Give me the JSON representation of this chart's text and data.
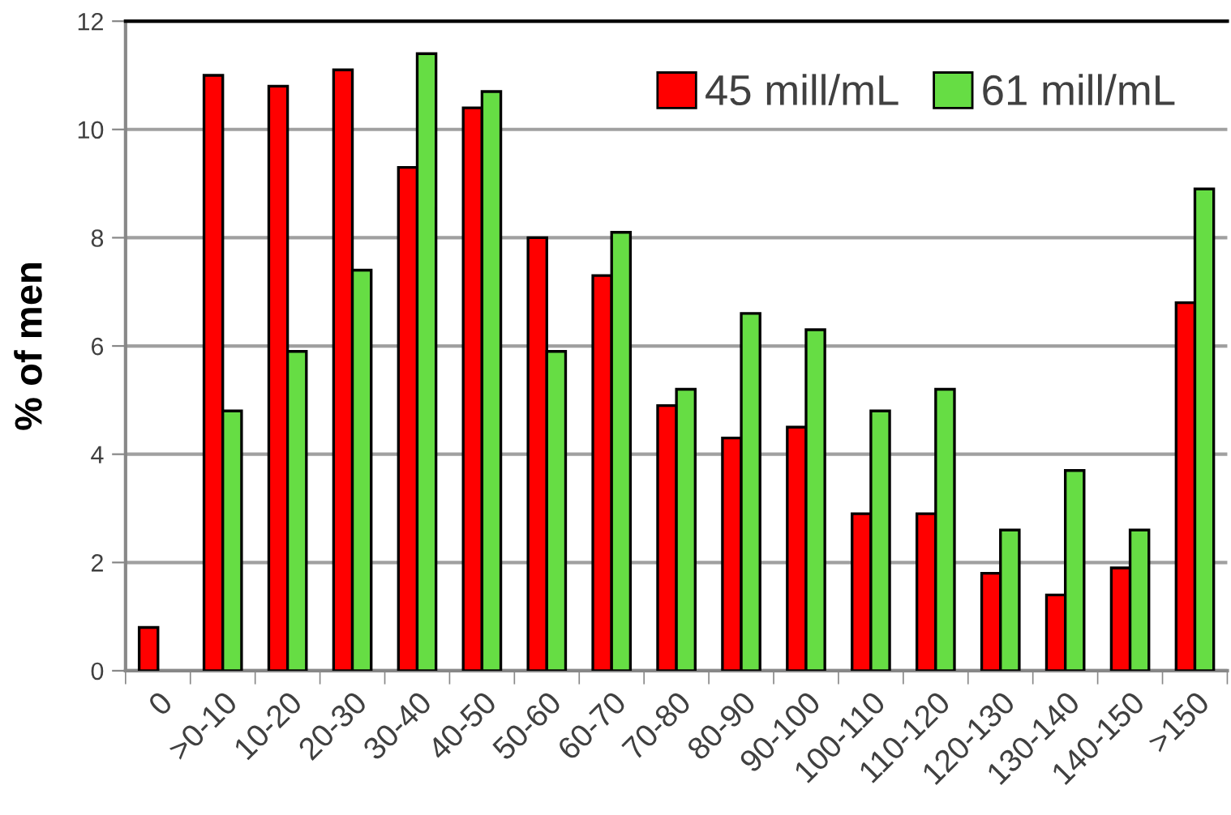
{
  "chart_data": {
    "type": "bar",
    "ylabel": "% of men",
    "categories": [
      "0",
      ">0-10",
      "10-20",
      "20-30",
      "30-40",
      "40-50",
      "50-60",
      "60-70",
      "70-80",
      "80-90",
      "90-100",
      "100-110",
      "110-120",
      "120-130",
      "130-140",
      "140-150",
      ">150"
    ],
    "series": [
      {
        "name": "45 mill/mL",
        "color": "#ff0000",
        "values": [
          0.8,
          11.0,
          10.8,
          11.1,
          9.3,
          10.4,
          8.0,
          7.3,
          4.9,
          4.3,
          4.5,
          2.9,
          2.9,
          1.8,
          1.4,
          1.9,
          6.8
        ]
      },
      {
        "name": "61 mill/mL",
        "color": "#66dd44",
        "values": [
          null,
          4.8,
          5.9,
          7.4,
          11.4,
          10.7,
          5.9,
          8.1,
          5.2,
          6.6,
          6.3,
          4.8,
          5.2,
          2.6,
          3.7,
          2.6,
          8.9
        ]
      }
    ],
    "ylim": [
      0,
      12
    ],
    "yticks": [
      0,
      2,
      4,
      6,
      8,
      10,
      12
    ],
    "grid": "y",
    "legend": "top right"
  }
}
